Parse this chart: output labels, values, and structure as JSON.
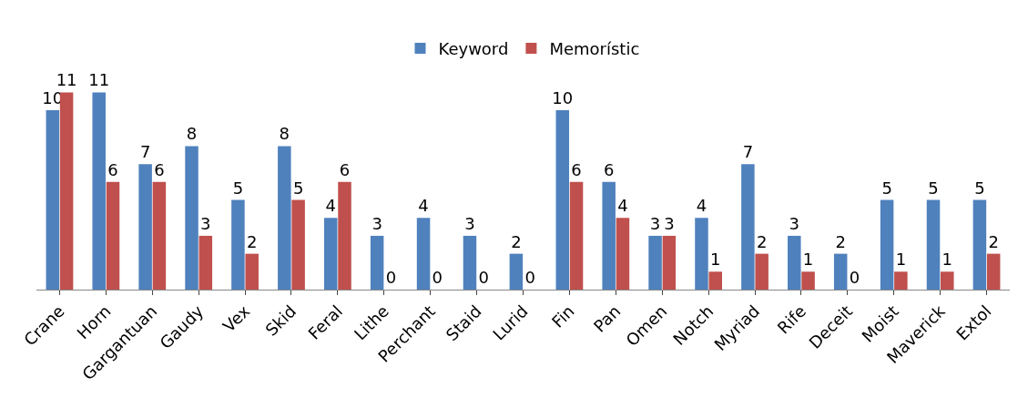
{
  "chart_data": {
    "type": "bar",
    "categories": [
      "Crane",
      "Horn",
      "Gargantuan",
      "Gaudy",
      "Vex",
      "Skid",
      "Feral",
      "Lithe",
      "Perchant",
      "Staid",
      "Lurid",
      "Fin",
      "Pan",
      "Omen",
      "Notch",
      "Myriad",
      "Rife",
      "Deceit",
      "Moist",
      "Maverick",
      "Extol"
    ],
    "series": [
      {
        "name": "Keyword",
        "color": "#4f81bd",
        "values": [
          10,
          11,
          7,
          8,
          5,
          8,
          4,
          3,
          4,
          3,
          2,
          10,
          6,
          3,
          4,
          7,
          3,
          2,
          5,
          5,
          5
        ]
      },
      {
        "name": "Memorístic",
        "color": "#c0504d",
        "values": [
          11,
          6,
          6,
          3,
          2,
          5,
          6,
          0,
          0,
          0,
          0,
          6,
          4,
          3,
          1,
          2,
          1,
          0,
          1,
          1,
          2
        ]
      }
    ],
    "data_labels": true,
    "legend": "top"
  }
}
